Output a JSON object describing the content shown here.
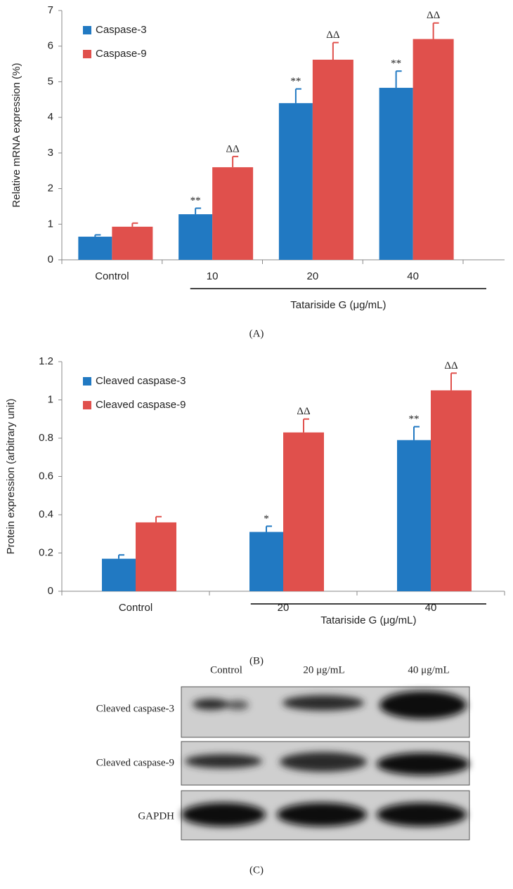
{
  "chart_data": [
    {
      "type": "bar",
      "panel_label": "(A)",
      "ylabel": "Relative mRNA expression (%)",
      "xlabel": "Tatariside G (μg/mL)",
      "categories": [
        "Control",
        "10",
        "20",
        "40"
      ],
      "series": [
        {
          "name": "Caspase-3",
          "color": "#2179c2",
          "values": [
            0.65,
            1.28,
            4.4,
            4.83
          ],
          "errors": [
            0.05,
            0.17,
            0.4,
            0.47
          ],
          "annotations": [
            null,
            "**",
            "**",
            "**"
          ]
        },
        {
          "name": "Caspase-9",
          "color": "#e0504c",
          "values": [
            0.93,
            2.6,
            5.62,
            6.2
          ],
          "errors": [
            0.1,
            0.3,
            0.48,
            0.45
          ],
          "annotations": [
            null,
            "ΔΔ",
            "ΔΔ",
            "ΔΔ"
          ]
        }
      ],
      "ylim": [
        0,
        7
      ],
      "yticks": [
        0,
        1,
        2,
        3,
        4,
        5,
        6,
        7
      ],
      "legend": "upper left"
    },
    {
      "type": "bar",
      "panel_label": "(B)",
      "ylabel": "Protein expression (arbitrary unit)",
      "xlabel": "Tatariside G (μg/mL)",
      "categories": [
        "Control",
        "20",
        "40"
      ],
      "series": [
        {
          "name": "Cleaved caspase-3",
          "color": "#2179c2",
          "values": [
            0.17,
            0.31,
            0.79
          ],
          "errors": [
            0.02,
            0.03,
            0.07
          ],
          "annotations": [
            null,
            "*",
            "**"
          ]
        },
        {
          "name": "Cleaved caspase-9",
          "color": "#e0504c",
          "values": [
            0.36,
            0.83,
            1.05
          ],
          "errors": [
            0.03,
            0.07,
            0.09
          ],
          "annotations": [
            null,
            "ΔΔ",
            "ΔΔ"
          ]
        }
      ],
      "ylim": [
        0,
        1.2
      ],
      "yticks": [
        0,
        0.2,
        0.4,
        0.6,
        0.8,
        1,
        1.2
      ],
      "legend": "upper left"
    }
  ],
  "blot": {
    "panel_label": "(C)",
    "columns": [
      "Control",
      "20 μg/mL",
      "40 μg/mL"
    ],
    "rows": [
      "Cleaved caspase-3",
      "Cleaved caspase-9",
      "GAPDH"
    ]
  }
}
